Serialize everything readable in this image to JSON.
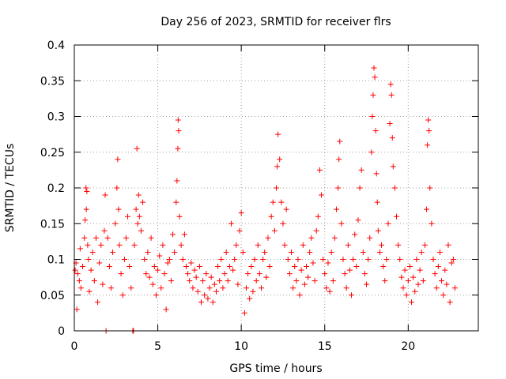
{
  "chart_data": {
    "type": "scatter",
    "title": "Day 256 of 2023, SRMTID for receiver flrs",
    "xlabel": "GPS time / hours",
    "ylabel": "SRMTID / TECUs",
    "xlim": [
      0,
      24.2
    ],
    "ylim": [
      0,
      0.4
    ],
    "x_ticks": [
      0,
      5,
      10,
      15,
      20
    ],
    "x_tick_labels": [
      "0",
      "5",
      "10",
      "15",
      "20"
    ],
    "y_ticks": [
      0,
      0.05,
      0.1,
      0.15,
      0.2,
      0.25,
      0.3,
      0.35,
      0.4
    ],
    "y_tick_labels": [
      "0",
      "0.05",
      "0.1",
      "0.15",
      "0.2",
      "0.25",
      "0.3",
      "0.35",
      "0.4"
    ],
    "grid": true,
    "marker": "plus",
    "series_color": "#ff0000",
    "series": [
      {
        "name": "SRMTID",
        "points": [
          [
            0.05,
            0.085
          ],
          [
            0.1,
            0.095
          ],
          [
            0.15,
            0.03
          ],
          [
            0.2,
            0.08
          ],
          [
            0.3,
            0.07
          ],
          [
            0.35,
            0.115
          ],
          [
            0.4,
            0.06
          ],
          [
            0.5,
            0.09
          ],
          [
            0.6,
            0.13
          ],
          [
            0.65,
            0.155
          ],
          [
            0.7,
            0.2
          ],
          [
            0.72,
            0.17
          ],
          [
            0.75,
            0.195
          ],
          [
            0.8,
            0.12
          ],
          [
            0.85,
            0.1
          ],
          [
            0.9,
            0.055
          ],
          [
            1.0,
            0.085
          ],
          [
            1.1,
            0.11
          ],
          [
            1.2,
            0.07
          ],
          [
            1.3,
            0.13
          ],
          [
            1.4,
            0.04
          ],
          [
            1.5,
            0.095
          ],
          [
            1.6,
            0.12
          ],
          [
            1.7,
            0.065
          ],
          [
            1.8,
            0.14
          ],
          [
            1.85,
            0.19
          ],
          [
            1.9,
            0.0
          ],
          [
            2.0,
            0.13
          ],
          [
            2.1,
            0.09
          ],
          [
            2.2,
            0.06
          ],
          [
            2.3,
            0.11
          ],
          [
            2.45,
            0.15
          ],
          [
            2.55,
            0.2
          ],
          [
            2.6,
            0.24
          ],
          [
            2.65,
            0.17
          ],
          [
            2.7,
            0.12
          ],
          [
            2.8,
            0.08
          ],
          [
            2.9,
            0.05
          ],
          [
            3.0,
            0.1
          ],
          [
            3.1,
            0.13
          ],
          [
            3.2,
            0.16
          ],
          [
            3.3,
            0.09
          ],
          [
            3.4,
            0.06
          ],
          [
            3.5,
            0.0
          ],
          [
            3.55,
            0.0
          ],
          [
            3.6,
            0.12
          ],
          [
            3.7,
            0.17
          ],
          [
            3.75,
            0.255
          ],
          [
            3.8,
            0.15
          ],
          [
            3.85,
            0.19
          ],
          [
            3.9,
            0.16
          ],
          [
            4.0,
            0.14
          ],
          [
            4.1,
            0.18
          ],
          [
            4.2,
            0.1
          ],
          [
            4.3,
            0.08
          ],
          [
            4.4,
            0.11
          ],
          [
            4.5,
            0.075
          ],
          [
            4.6,
            0.13
          ],
          [
            4.7,
            0.065
          ],
          [
            4.8,
            0.09
          ],
          [
            4.9,
            0.05
          ],
          [
            5.0,
            0.085
          ],
          [
            5.1,
            0.105
          ],
          [
            5.2,
            0.06
          ],
          [
            5.3,
            0.12
          ],
          [
            5.4,
            0.08
          ],
          [
            5.5,
            0.03
          ],
          [
            5.6,
            0.095
          ],
          [
            5.7,
            0.1
          ],
          [
            5.8,
            0.07
          ],
          [
            5.9,
            0.135
          ],
          [
            6.0,
            0.11
          ],
          [
            6.1,
            0.18
          ],
          [
            6.15,
            0.21
          ],
          [
            6.2,
            0.255
          ],
          [
            6.22,
            0.295
          ],
          [
            6.25,
            0.28
          ],
          [
            6.3,
            0.16
          ],
          [
            6.4,
            0.12
          ],
          [
            6.5,
            0.1
          ],
          [
            6.6,
            0.135
          ],
          [
            6.7,
            0.09
          ],
          [
            6.8,
            0.08
          ],
          [
            6.9,
            0.07
          ],
          [
            7.0,
            0.095
          ],
          [
            7.1,
            0.06
          ],
          [
            7.2,
            0.085
          ],
          [
            7.3,
            0.075
          ],
          [
            7.4,
            0.055
          ],
          [
            7.5,
            0.09
          ],
          [
            7.6,
            0.04
          ],
          [
            7.7,
            0.07
          ],
          [
            7.8,
            0.05
          ],
          [
            7.9,
            0.08
          ],
          [
            8.0,
            0.045
          ],
          [
            8.1,
            0.06
          ],
          [
            8.2,
            0.075
          ],
          [
            8.3,
            0.04
          ],
          [
            8.4,
            0.065
          ],
          [
            8.5,
            0.055
          ],
          [
            8.6,
            0.09
          ],
          [
            8.7,
            0.07
          ],
          [
            8.8,
            0.1
          ],
          [
            8.9,
            0.06
          ],
          [
            9.0,
            0.08
          ],
          [
            9.1,
            0.11
          ],
          [
            9.2,
            0.07
          ],
          [
            9.3,
            0.09
          ],
          [
            9.4,
            0.15
          ],
          [
            9.5,
            0.085
          ],
          [
            9.6,
            0.1
          ],
          [
            9.7,
            0.12
          ],
          [
            9.8,
            0.065
          ],
          [
            9.9,
            0.14
          ],
          [
            10.0,
            0.165
          ],
          [
            10.1,
            0.11
          ],
          [
            10.2,
            0.025
          ],
          [
            10.3,
            0.06
          ],
          [
            10.4,
            0.08
          ],
          [
            10.5,
            0.045
          ],
          [
            10.6,
            0.09
          ],
          [
            10.7,
            0.055
          ],
          [
            10.8,
            0.1
          ],
          [
            10.9,
            0.07
          ],
          [
            11.0,
            0.12
          ],
          [
            11.1,
            0.08
          ],
          [
            11.2,
            0.06
          ],
          [
            11.3,
            0.1
          ],
          [
            11.4,
            0.11
          ],
          [
            11.5,
            0.075
          ],
          [
            11.6,
            0.13
          ],
          [
            11.7,
            0.09
          ],
          [
            11.8,
            0.16
          ],
          [
            11.9,
            0.18
          ],
          [
            12.0,
            0.14
          ],
          [
            12.1,
            0.2
          ],
          [
            12.15,
            0.23
          ],
          [
            12.2,
            0.275
          ],
          [
            12.3,
            0.24
          ],
          [
            12.4,
            0.18
          ],
          [
            12.5,
            0.15
          ],
          [
            12.6,
            0.12
          ],
          [
            12.7,
            0.17
          ],
          [
            12.8,
            0.1
          ],
          [
            12.9,
            0.08
          ],
          [
            13.0,
            0.11
          ],
          [
            13.1,
            0.06
          ],
          [
            13.2,
            0.09
          ],
          [
            13.3,
            0.07
          ],
          [
            13.4,
            0.1
          ],
          [
            13.5,
            0.05
          ],
          [
            13.6,
            0.085
          ],
          [
            13.7,
            0.12
          ],
          [
            13.8,
            0.065
          ],
          [
            13.9,
            0.09
          ],
          [
            14.0,
            0.075
          ],
          [
            14.1,
            0.11
          ],
          [
            14.2,
            0.13
          ],
          [
            14.3,
            0.095
          ],
          [
            14.4,
            0.07
          ],
          [
            14.5,
            0.14
          ],
          [
            14.6,
            0.16
          ],
          [
            14.7,
            0.225
          ],
          [
            14.8,
            0.19
          ],
          [
            14.9,
            0.1
          ],
          [
            15.0,
            0.08
          ],
          [
            15.1,
            0.06
          ],
          [
            15.2,
            0.095
          ],
          [
            15.3,
            0.055
          ],
          [
            15.4,
            0.11
          ],
          [
            15.5,
            0.07
          ],
          [
            15.6,
            0.13
          ],
          [
            15.7,
            0.17
          ],
          [
            15.8,
            0.2
          ],
          [
            15.85,
            0.24
          ],
          [
            15.9,
            0.265
          ],
          [
            16.0,
            0.15
          ],
          [
            16.1,
            0.1
          ],
          [
            16.2,
            0.08
          ],
          [
            16.3,
            0.06
          ],
          [
            16.4,
            0.12
          ],
          [
            16.5,
            0.085
          ],
          [
            16.6,
            0.05
          ],
          [
            16.7,
            0.1
          ],
          [
            16.8,
            0.135
          ],
          [
            16.9,
            0.09
          ],
          [
            17.0,
            0.155
          ],
          [
            17.1,
            0.2
          ],
          [
            17.2,
            0.225
          ],
          [
            17.3,
            0.11
          ],
          [
            17.4,
            0.08
          ],
          [
            17.5,
            0.065
          ],
          [
            17.6,
            0.1
          ],
          [
            17.7,
            0.13
          ],
          [
            17.8,
            0.25
          ],
          [
            17.85,
            0.3
          ],
          [
            17.9,
            0.33
          ],
          [
            17.95,
            0.368
          ],
          [
            18.0,
            0.355
          ],
          [
            18.05,
            0.28
          ],
          [
            18.1,
            0.22
          ],
          [
            18.15,
            0.18
          ],
          [
            18.2,
            0.14
          ],
          [
            18.3,
            0.11
          ],
          [
            18.4,
            0.12
          ],
          [
            18.5,
            0.09
          ],
          [
            18.6,
            0.07
          ],
          [
            18.7,
            0.1
          ],
          [
            18.8,
            0.15
          ],
          [
            18.9,
            0.29
          ],
          [
            18.95,
            0.345
          ],
          [
            19.0,
            0.33
          ],
          [
            19.05,
            0.27
          ],
          [
            19.1,
            0.23
          ],
          [
            19.2,
            0.2
          ],
          [
            19.3,
            0.16
          ],
          [
            19.4,
            0.12
          ],
          [
            19.5,
            0.1
          ],
          [
            19.6,
            0.075
          ],
          [
            19.7,
            0.06
          ],
          [
            19.8,
            0.085
          ],
          [
            19.9,
            0.05
          ],
          [
            20.0,
            0.07
          ],
          [
            20.1,
            0.09
          ],
          [
            20.2,
            0.04
          ],
          [
            20.3,
            0.075
          ],
          [
            20.4,
            0.055
          ],
          [
            20.5,
            0.1
          ],
          [
            20.6,
            0.065
          ],
          [
            20.7,
            0.085
          ],
          [
            20.8,
            0.11
          ],
          [
            20.9,
            0.07
          ],
          [
            21.0,
            0.12
          ],
          [
            21.1,
            0.17
          ],
          [
            21.15,
            0.26
          ],
          [
            21.2,
            0.295
          ],
          [
            21.25,
            0.28
          ],
          [
            21.3,
            0.2
          ],
          [
            21.4,
            0.15
          ],
          [
            21.5,
            0.1
          ],
          [
            21.6,
            0.08
          ],
          [
            21.7,
            0.06
          ],
          [
            21.8,
            0.09
          ],
          [
            21.9,
            0.11
          ],
          [
            22.0,
            0.07
          ],
          [
            22.1,
            0.05
          ],
          [
            22.2,
            0.085
          ],
          [
            22.3,
            0.065
          ],
          [
            22.4,
            0.12
          ],
          [
            22.5,
            0.04
          ],
          [
            22.6,
            0.095
          ],
          [
            22.7,
            0.1
          ],
          [
            22.8,
            0.06
          ]
        ]
      }
    ]
  }
}
